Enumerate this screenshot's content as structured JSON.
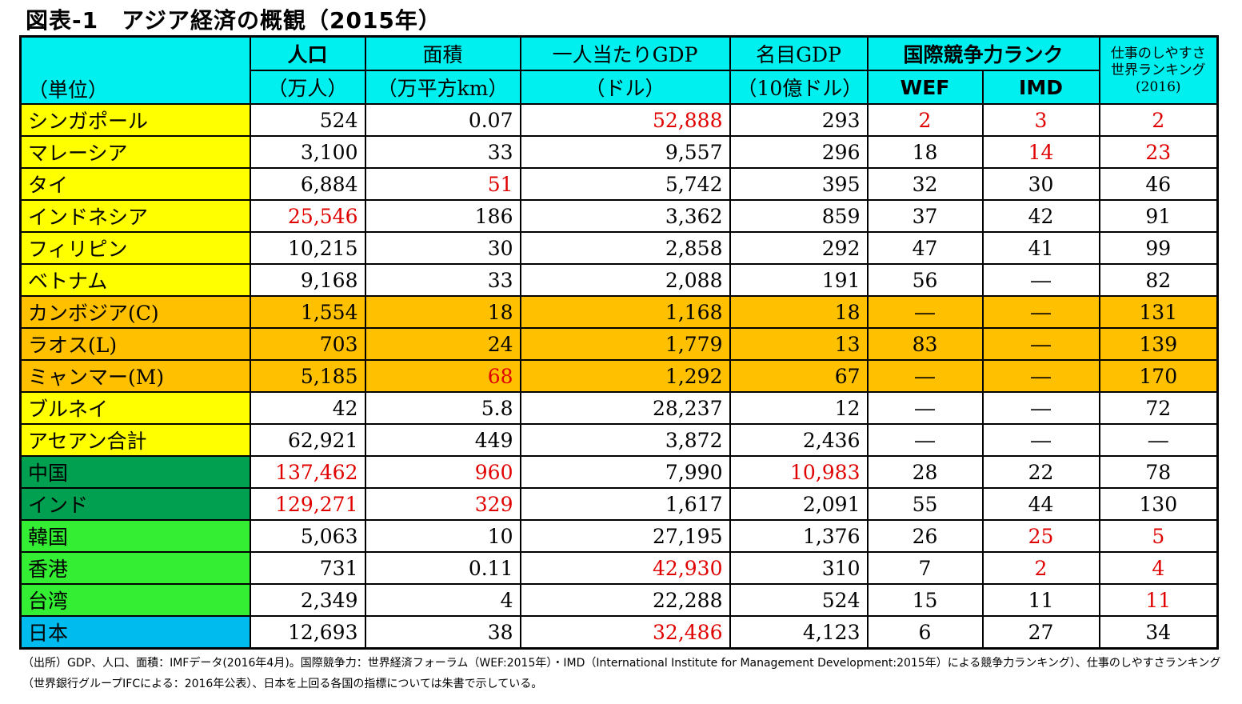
{
  "title": "図表-1　アジア経済の概観（2015年）",
  "headers": {
    "unit_label": "（単位）",
    "population": "人口",
    "population_unit": "（万人）",
    "area": "面積",
    "area_unit": "（万平方km）",
    "gdp_per_capita": "一人当たりGDP",
    "gdp_per_capita_unit": "（ドル）",
    "nominal_gdp": "名目GDP",
    "nominal_gdp_unit": "（10億ドル）",
    "competitiveness": "国際競争力ランク",
    "wef": "WEF",
    "imd": "IMD",
    "business_line1": "仕事のしやすさ",
    "business_line2": "世界ランキング",
    "business_line3": "(2016)"
  },
  "rows": [
    {
      "name": "シンガポール",
      "pop": "524",
      "area": "0.07",
      "gdppc": "52,888",
      "gdp": "293",
      "wef": "2",
      "imd": "3",
      "biz": "2",
      "group": "y",
      "red": [
        "gdppc",
        "wef",
        "imd",
        "biz"
      ]
    },
    {
      "name": "マレーシア",
      "pop": "3,100",
      "area": "33",
      "gdppc": "9,557",
      "gdp": "296",
      "wef": "18",
      "imd": "14",
      "biz": "23",
      "group": "y",
      "red": [
        "imd",
        "biz"
      ]
    },
    {
      "name": "タイ",
      "pop": "6,884",
      "area": "51",
      "gdppc": "5,742",
      "gdp": "395",
      "wef": "32",
      "imd": "30",
      "biz": "46",
      "group": "y",
      "red": [
        "area"
      ]
    },
    {
      "name": "インドネシア",
      "pop": "25,546",
      "area": "186",
      "gdppc": "3,362",
      "gdp": "859",
      "wef": "37",
      "imd": "42",
      "biz": "91",
      "group": "y",
      "red": [
        "pop"
      ]
    },
    {
      "name": "フィリピン",
      "pop": "10,215",
      "area": "30",
      "gdppc": "2,858",
      "gdp": "292",
      "wef": "47",
      "imd": "41",
      "biz": "99",
      "group": "y",
      "red": []
    },
    {
      "name": "ベトナム",
      "pop": "9,168",
      "area": "33",
      "gdppc": "2,088",
      "gdp": "191",
      "wef": "56",
      "imd": "―",
      "biz": "82",
      "group": "y",
      "red": []
    },
    {
      "name": "カンボジア(C)",
      "pop": "1,554",
      "area": "18",
      "gdppc": "1,168",
      "gdp": "18",
      "wef": "―",
      "imd": "―",
      "biz": "131",
      "group": "o",
      "red": []
    },
    {
      "name": "ラオス(L)",
      "pop": "703",
      "area": "24",
      "gdppc": "1,779",
      "gdp": "13",
      "wef": "83",
      "imd": "―",
      "biz": "139",
      "group": "o",
      "red": []
    },
    {
      "name": "ミャンマー(M)",
      "pop": "5,185",
      "area": "68",
      "gdppc": "1,292",
      "gdp": "67",
      "wef": "―",
      "imd": "―",
      "biz": "170",
      "group": "o",
      "red": [
        "area"
      ]
    },
    {
      "name": "ブルネイ",
      "pop": "42",
      "area": "5.8",
      "gdppc": "28,237",
      "gdp": "12",
      "wef": "―",
      "imd": "―",
      "biz": "72",
      "group": "y",
      "red": []
    },
    {
      "name": "アセアン合計",
      "pop": "62,921",
      "area": "449",
      "gdppc": "3,872",
      "gdp": "2,436",
      "wef": "―",
      "imd": "―",
      "biz": "―",
      "group": "y",
      "red": []
    },
    {
      "name": "中国",
      "pop": "137,462",
      "area": "960",
      "gdppc": "7,990",
      "gdp": "10,983",
      "wef": "28",
      "imd": "22",
      "biz": "78",
      "group": "dg",
      "red": [
        "pop",
        "area",
        "gdp"
      ]
    },
    {
      "name": "インド",
      "pop": "129,271",
      "area": "329",
      "gdppc": "1,617",
      "gdp": "2,091",
      "wef": "55",
      "imd": "44",
      "biz": "130",
      "group": "dg",
      "red": [
        "pop",
        "area"
      ]
    },
    {
      "name": "韓国",
      "pop": "5,063",
      "area": "10",
      "gdppc": "27,195",
      "gdp": "1,376",
      "wef": "26",
      "imd": "25",
      "biz": "5",
      "group": "lg",
      "red": [
        "imd",
        "biz"
      ]
    },
    {
      "name": "香港",
      "pop": "731",
      "area": "0.11",
      "gdppc": "42,930",
      "gdp": "310",
      "wef": "7",
      "imd": "2",
      "biz": "4",
      "group": "lg",
      "red": [
        "gdppc",
        "imd",
        "biz"
      ]
    },
    {
      "name": "台湾",
      "pop": "2,349",
      "area": "4",
      "gdppc": "22,288",
      "gdp": "524",
      "wef": "15",
      "imd": "11",
      "biz": "11",
      "group": "lg",
      "red": [
        "biz"
      ]
    },
    {
      "name": "日本",
      "pop": "12,693",
      "area": "38",
      "gdppc": "32,486",
      "gdp": "4,123",
      "wef": "6",
      "imd": "27",
      "biz": "34",
      "group": "b",
      "red": [
        "gdppc"
      ]
    }
  ],
  "colors": {
    "header": "#00f0f0",
    "asean": "#ffff00",
    "clm": "#ffc000",
    "china_india": "#00a050",
    "nies": "#33ee33",
    "japan": "#00bbee",
    "highlight": "#e00000"
  },
  "note": "（出所）GDP、人口、面積：IMFデータ(2016年4月)。国際競争力：世界経済フォーラム（WEF:2015年）・IMD（International Institute for Management Development:2015年）による競争力ランキング）、仕事のしやすさランキング（世界銀行グループIFCによる：2016年公表）、日本を上回る各国の指標については朱書で示している。"
}
